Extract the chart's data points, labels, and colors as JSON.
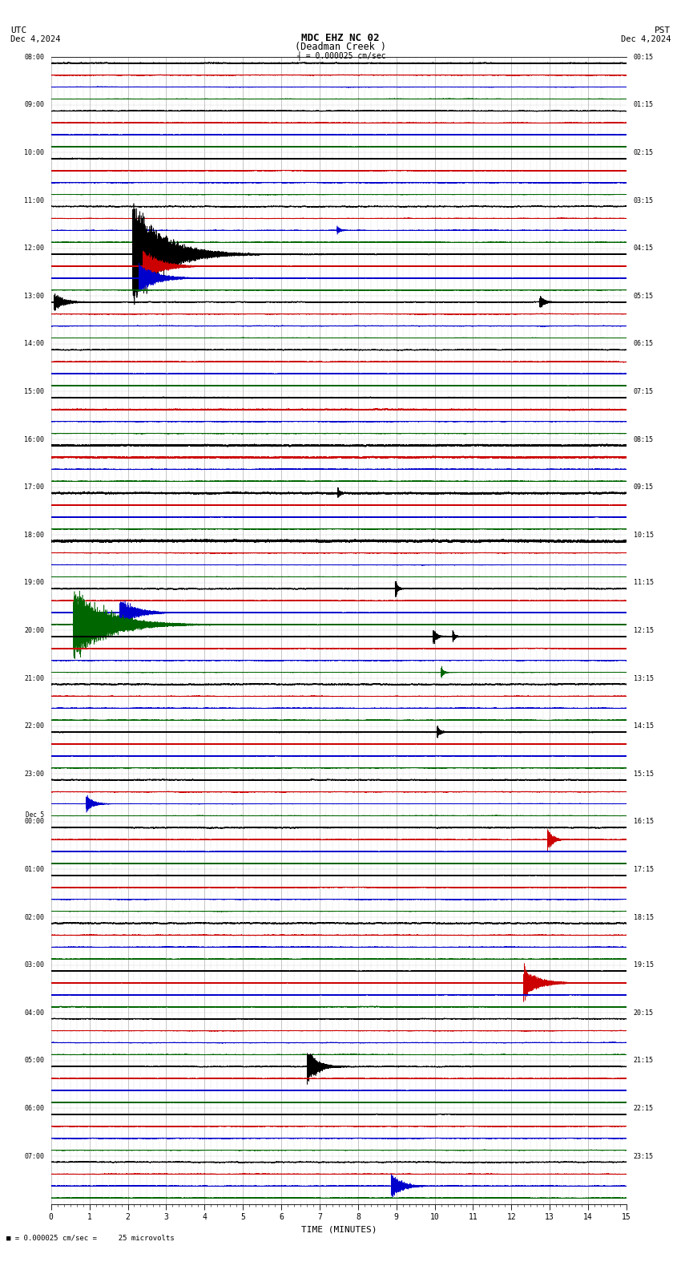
{
  "title_line1": "MDC EHZ NC 02",
  "title_line2": "(Deadman Creek )",
  "scale_text": "= 0.000025 cm/sec",
  "bottom_note": "= 0.000025 cm/sec =     25 microvolts",
  "utc_label": "UTC",
  "pst_label": "PST",
  "date_left": "Dec 4,2024",
  "date_right": "Dec 4,2024",
  "xlabel": "TIME (MINUTES)",
  "bg_color": "#ffffff",
  "trace_colors": [
    "#000000",
    "#cc0000",
    "#0000cc",
    "#006600"
  ],
  "grid_color": "#999999",
  "minutes": 15,
  "num_hour_rows": 24,
  "traces_per_hour": 4,
  "sample_rate": 50,
  "noise_level": 0.06,
  "utc_labels": [
    "08:00",
    "09:00",
    "10:00",
    "11:00",
    "12:00",
    "13:00",
    "14:00",
    "15:00",
    "16:00",
    "17:00",
    "18:00",
    "19:00",
    "20:00",
    "21:00",
    "22:00",
    "23:00",
    "00:00",
    "01:00",
    "02:00",
    "03:00",
    "04:00",
    "05:00",
    "06:00",
    "07:00"
  ],
  "pst_labels": [
    "00:15",
    "01:15",
    "02:15",
    "03:15",
    "04:15",
    "05:15",
    "06:15",
    "07:15",
    "08:15",
    "09:15",
    "10:15",
    "11:15",
    "12:15",
    "13:15",
    "14:15",
    "15:15",
    "16:15",
    "17:15",
    "18:15",
    "19:15",
    "20:15",
    "21:15",
    "22:15",
    "23:15"
  ],
  "dec5_hour_idx": 16
}
